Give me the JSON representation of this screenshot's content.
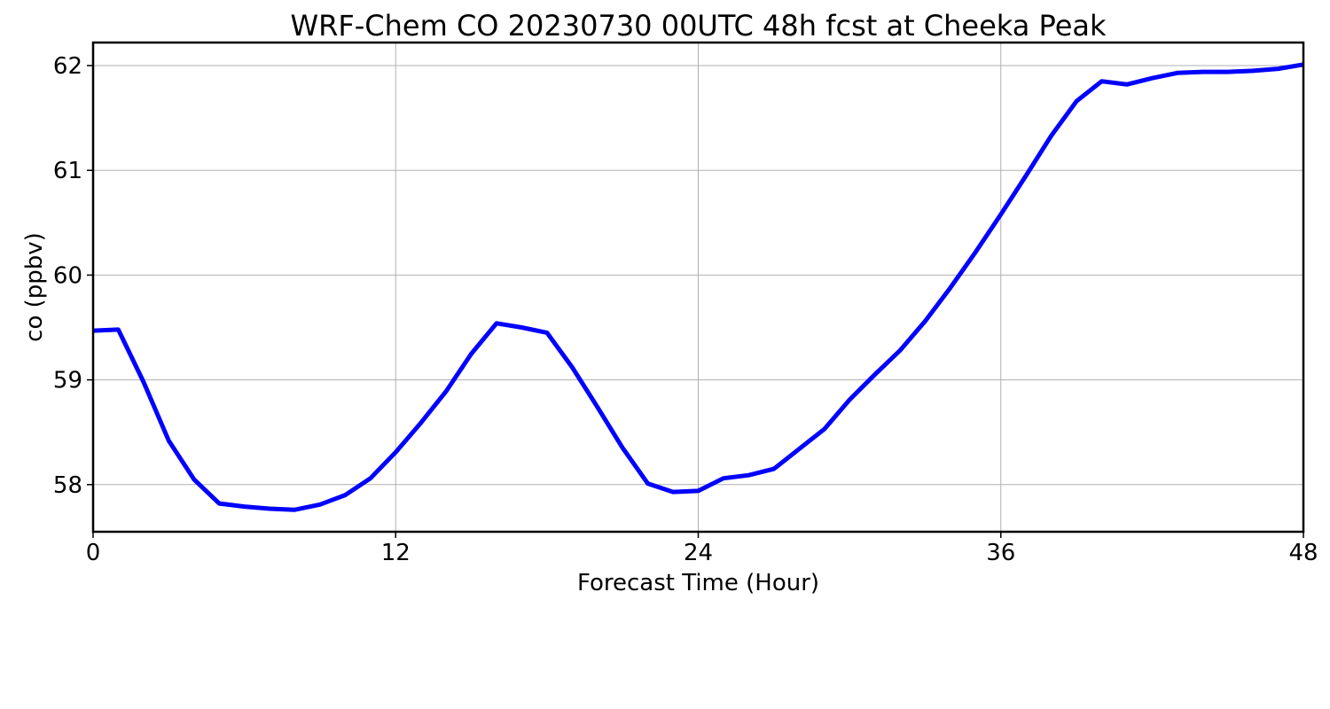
{
  "chart_data": {
    "type": "line",
    "title": "WRF-Chem CO  20230730 00UTC 48h fcst at Cheeka Peak",
    "xlabel": "Forecast Time (Hour)",
    "ylabel": "co  (ppbv)",
    "xlim": [
      0,
      48
    ],
    "ylim": [
      57.55,
      62.22
    ],
    "xticks": [
      0,
      12,
      24,
      36,
      48
    ],
    "yticks": [
      58,
      59,
      60,
      61,
      62
    ],
    "grid": true,
    "series": [
      {
        "color": "#0000ff",
        "x": [
          0,
          1,
          2,
          3,
          4,
          5,
          6,
          7,
          8,
          9,
          10,
          11,
          12,
          13,
          14,
          15,
          16,
          17,
          18,
          19,
          20,
          21,
          22,
          23,
          24,
          25,
          26,
          27,
          28,
          29,
          30,
          31,
          32,
          33,
          34,
          35,
          36,
          37,
          38,
          39,
          40,
          41,
          42,
          43,
          44,
          45,
          46,
          47,
          48
        ],
        "y": [
          59.47,
          59.48,
          58.98,
          58.42,
          58.05,
          57.82,
          57.79,
          57.77,
          57.76,
          57.81,
          57.9,
          58.06,
          58.31,
          58.59,
          58.89,
          59.25,
          59.54,
          59.5,
          59.45,
          59.12,
          58.74,
          58.35,
          58.01,
          57.93,
          57.94,
          58.06,
          58.09,
          58.15,
          58.34,
          58.53,
          58.81,
          59.05,
          59.28,
          59.56,
          59.88,
          60.22,
          60.58,
          60.95,
          61.33,
          61.66,
          61.85,
          61.82,
          61.88,
          61.93,
          61.94,
          61.94,
          61.95,
          61.97,
          62.01
        ]
      }
    ]
  }
}
